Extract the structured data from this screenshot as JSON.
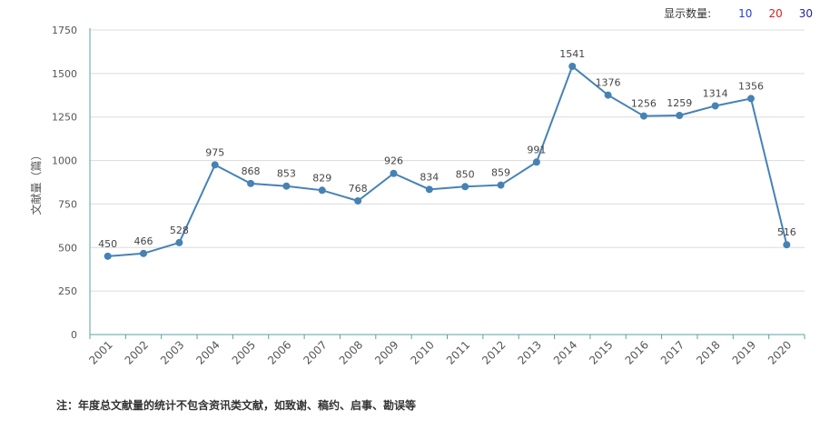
{
  "display_count": {
    "label": "显示数量:",
    "options": [
      {
        "label": "10",
        "color": "#1f3fd6"
      },
      {
        "label": "20",
        "color": "#d62020"
      },
      {
        "label": "30",
        "color": "#1f1f9f"
      }
    ]
  },
  "note": "注：年度总文献量的统计不包含资讯类文献，如致谢、稿约、启事、勘误等",
  "chart_data": {
    "type": "line",
    "title": "",
    "ylabel": "文献量（篇）",
    "xlabel": "",
    "ylim": [
      0,
      1750
    ],
    "yticks": [
      0,
      250,
      500,
      750,
      1000,
      1250,
      1500,
      1750
    ],
    "grid": true,
    "line_color": "#4682b4",
    "categories": [
      "2001",
      "2002",
      "2003",
      "2004",
      "2005",
      "2006",
      "2007",
      "2008",
      "2009",
      "2010",
      "2011",
      "2012",
      "2013",
      "2014",
      "2015",
      "2016",
      "2017",
      "2018",
      "2019",
      "2020"
    ],
    "values": [
      450,
      466,
      528,
      975,
      868,
      853,
      829,
      768,
      926,
      834,
      850,
      859,
      991,
      1541,
      1376,
      1256,
      1259,
      1314,
      1356,
      516
    ],
    "data_labels": [
      "450",
      "466",
      "528",
      "975",
      "868",
      "853",
      "829",
      "768",
      "926",
      "834",
      "850",
      "859",
      "991",
      "1541",
      "1376",
      "1256",
      "1259",
      "1314",
      "1356",
      "516"
    ]
  }
}
